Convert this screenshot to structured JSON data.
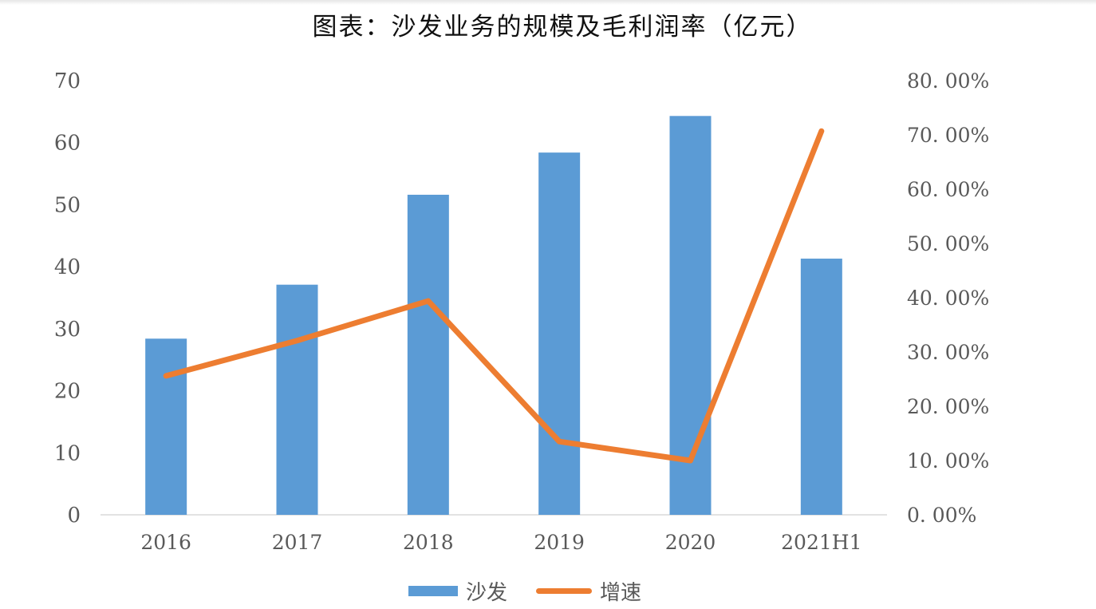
{
  "title": "图表：沙发业务的规模及毛利润率（亿元）",
  "chart_data": {
    "type": "bar",
    "title": "图表：沙发业务的规模及毛利润率（亿元）",
    "categories": [
      "2016",
      "2017",
      "2018",
      "2019",
      "2020",
      "2021H1"
    ],
    "series": [
      {
        "name": "沙发",
        "type": "bar",
        "axis": "left",
        "color": "#5b9bd5",
        "values": [
          28.4,
          37.1,
          51.6,
          58.4,
          64.3,
          41.3
        ]
      },
      {
        "name": "增速",
        "type": "line",
        "axis": "right",
        "color": "#ed7d31",
        "values": [
          25.6,
          32.1,
          39.4,
          13.5,
          10.0,
          70.7
        ]
      }
    ],
    "left_axis": {
      "ylim": [
        0,
        70
      ],
      "ticks": [
        "0",
        "10",
        "20",
        "30",
        "40",
        "50",
        "60",
        "70"
      ]
    },
    "right_axis": {
      "ylim": [
        0,
        80
      ],
      "ticks": [
        "0. 00%",
        "10. 00%",
        "20. 00%",
        "30. 00%",
        "40. 00%",
        "50. 00%",
        "60. 00%",
        "70. 00%",
        "80. 00%"
      ]
    },
    "xlabel": "",
    "ylabel": "",
    "grid": false,
    "legend_position": "bottom"
  },
  "legend": {
    "bar_label": "沙发",
    "line_label": "增速"
  }
}
